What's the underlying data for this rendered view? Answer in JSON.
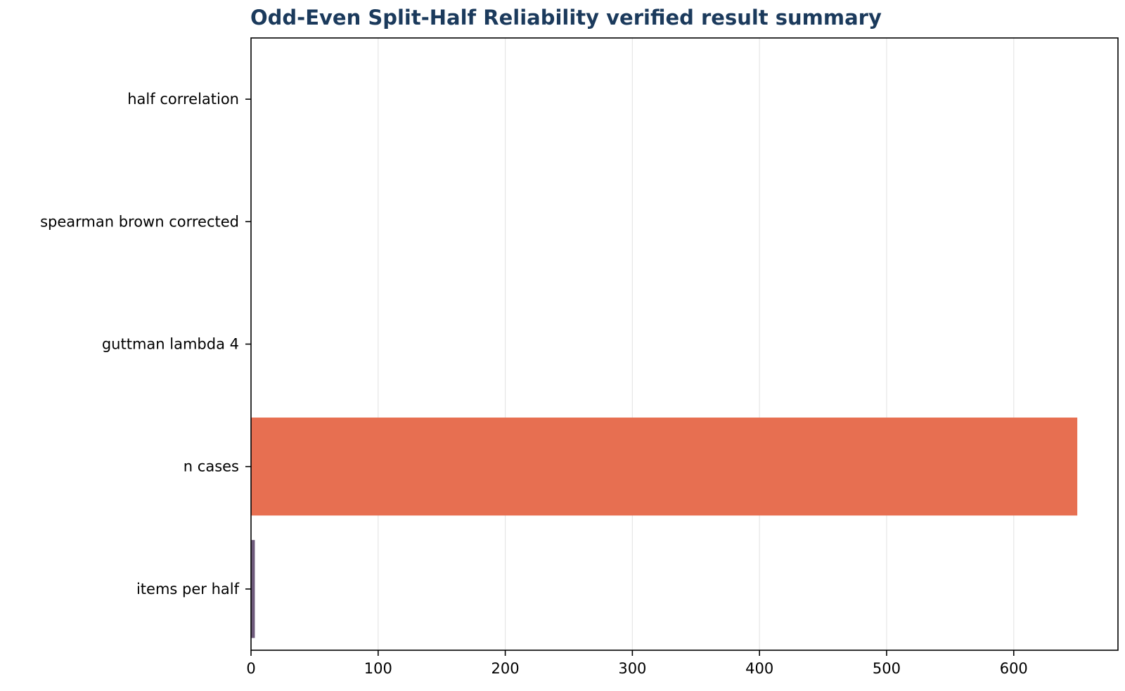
{
  "chart_data": {
    "type": "bar",
    "orientation": "horizontal",
    "title": "Odd-Even Split-Half Reliability verified result summary",
    "xlabel": "",
    "ylabel": "",
    "categories": [
      "half correlation",
      "spearman brown corrected",
      "guttman lambda 4",
      "n cases",
      "items per half"
    ],
    "values": [
      0.0,
      0.0,
      0.0,
      650,
      3
    ],
    "bar_colors": [
      "#2e8b74",
      "#1f77b4",
      "#c9a227",
      "#e76f51",
      "#6d597a"
    ],
    "xlim": [
      0,
      682
    ],
    "xticks": [
      0,
      100,
      200,
      300,
      400,
      500,
      600
    ],
    "grid": "x",
    "legend": "none"
  }
}
